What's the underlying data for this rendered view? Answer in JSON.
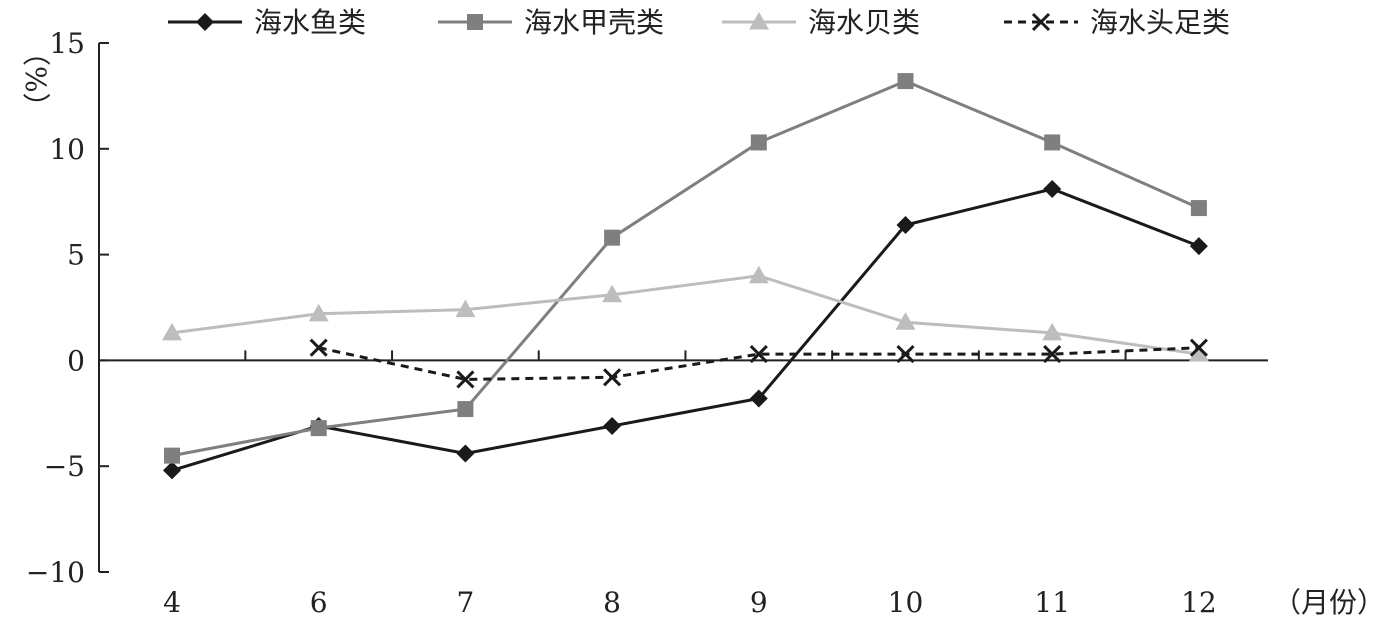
{
  "chart_data": {
    "type": "line",
    "title": "",
    "xlabel": "（月份）",
    "ylabel": "（%）",
    "categories": [
      "4",
      "6",
      "7",
      "8",
      "9",
      "10",
      "11",
      "12"
    ],
    "ylim": [
      -10,
      15
    ],
    "yticks": [
      "-10",
      "-5",
      "0",
      "5",
      "10",
      "15"
    ],
    "grid": false,
    "legend_position": "top",
    "series": [
      {
        "name": "海水鱼类",
        "marker": "diamond",
        "color": "#1a1a1a",
        "dash": "solid",
        "values": [
          -5.2,
          -3.1,
          -4.4,
          -3.1,
          -1.8,
          6.4,
          8.1,
          5.4
        ]
      },
      {
        "name": "海水甲壳类",
        "marker": "square",
        "color": "#7f7f7f",
        "dash": "solid",
        "values": [
          -4.5,
          -3.2,
          -2.3,
          5.8,
          10.3,
          13.2,
          10.3,
          7.2
        ]
      },
      {
        "name": "海水贝类",
        "marker": "triangle",
        "color": "#bdbdbd",
        "dash": "solid",
        "values": [
          1.3,
          2.2,
          2.4,
          3.1,
          4.0,
          1.8,
          1.3,
          0.3
        ]
      },
      {
        "name": "海水头足类",
        "marker": "x",
        "color": "#1a1a1a",
        "dash": "dashed",
        "values": [
          null,
          0.6,
          -0.9,
          -0.8,
          0.3,
          0.3,
          0.3,
          0.6
        ]
      }
    ]
  }
}
